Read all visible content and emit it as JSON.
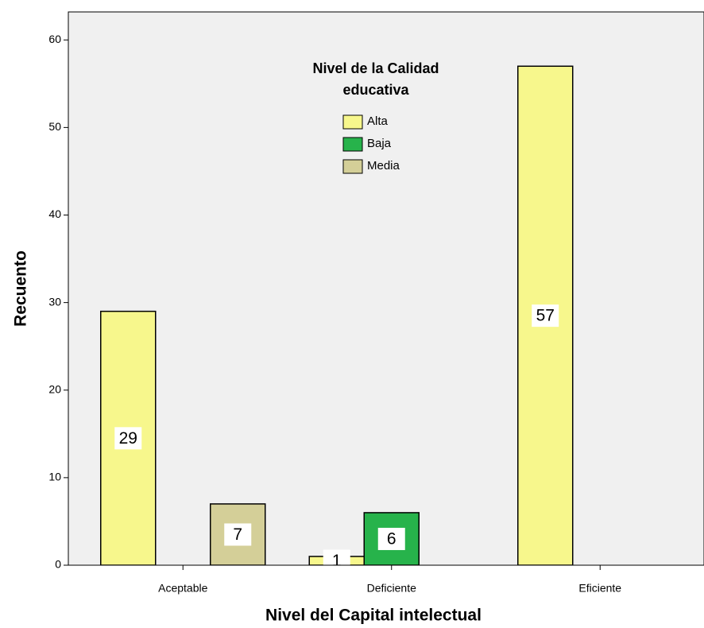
{
  "chart_data": {
    "type": "bar",
    "x_label": "Nivel del Capital intelectual",
    "y_label": "Recuento",
    "legend_title": [
      "Nivel de la Calidad",
      "educativa"
    ],
    "categories": [
      "Aceptable",
      "Deficiente",
      "Eficiente"
    ],
    "series": [
      {
        "name": "Alta",
        "color": "#f7f78c",
        "values": [
          29,
          1,
          57
        ]
      },
      {
        "name": "Baja",
        "color": "#27b34b",
        "values": [
          null,
          6,
          null
        ]
      },
      {
        "name": "Media",
        "color": "#d4cf98",
        "values": [
          7,
          null,
          null
        ]
      }
    ],
    "ylim": [
      0,
      63.2
    ],
    "yticks": [
      0,
      10,
      20,
      30,
      40,
      50,
      60
    ],
    "legend": "top"
  }
}
